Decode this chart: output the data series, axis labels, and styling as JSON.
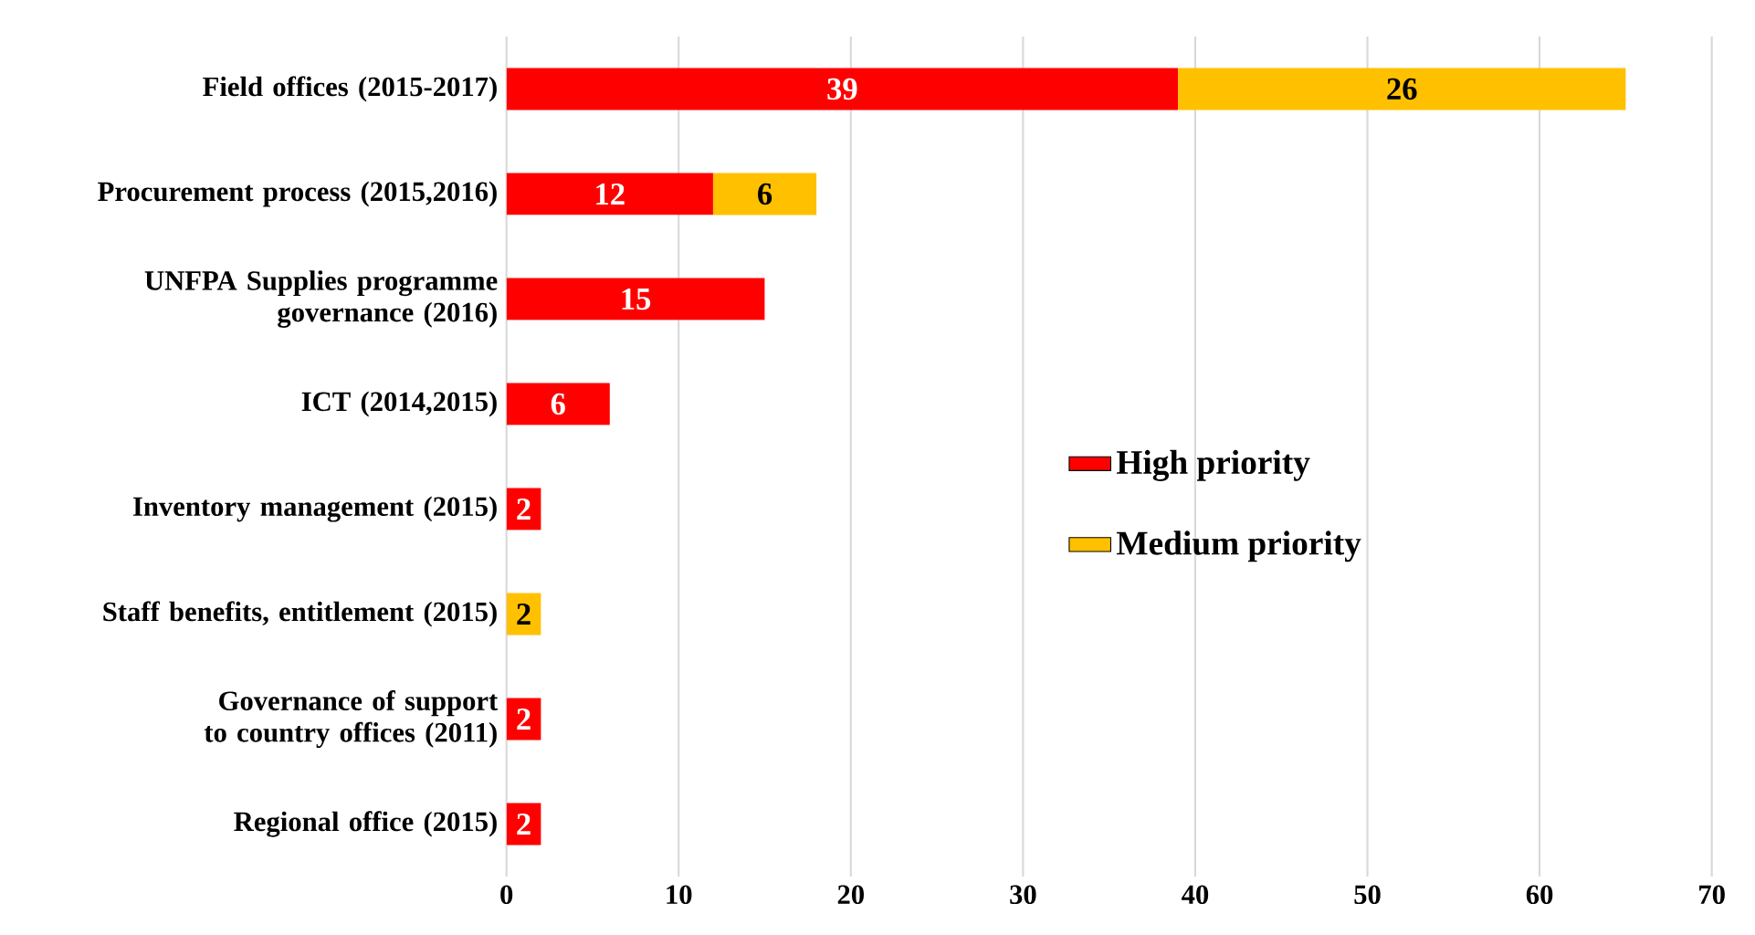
{
  "chart_data": {
    "type": "bar",
    "orientation": "horizontal",
    "stacked": true,
    "categories": [
      "Field offices (2015-2017)",
      "Procurement process (2015,2016)",
      "UNFPA Supplies programme governance (2016)",
      "ICT (2014,2015)",
      "Inventory management (2015)",
      "Staff benefits, entitlement (2015)",
      "Governance of support to country offices (2011)",
      "Regional office (2015)"
    ],
    "series": [
      {
        "name": "High priority",
        "color": "#ff0000",
        "values": [
          39,
          12,
          15,
          6,
          2,
          null,
          2,
          2
        ]
      },
      {
        "name": "Medium priority",
        "color": "#ffc000",
        "values": [
          26,
          6,
          null,
          null,
          null,
          2,
          null,
          null
        ]
      }
    ],
    "xlim": [
      0,
      70
    ],
    "xticks": [
      0,
      10,
      20,
      30,
      40,
      50,
      60,
      70
    ],
    "grid": "x",
    "legend": "right",
    "data_labels": true
  }
}
